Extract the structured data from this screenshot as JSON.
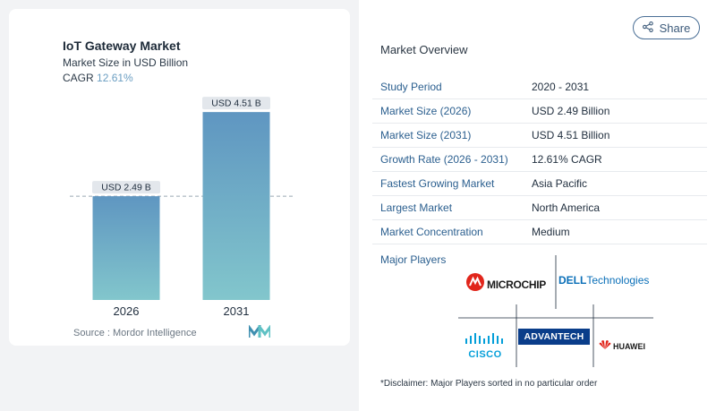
{
  "chart": {
    "title": "IoT Gateway Market",
    "subtitle": "Market Size in USD Billion",
    "cagr_label": "CAGR",
    "cagr_value": "12.61%",
    "source": "Source :  Mordor Intelligence"
  },
  "chart_data": {
    "type": "bar",
    "categories": [
      "2026",
      "2031"
    ],
    "values": [
      2.49,
      4.51
    ],
    "data_labels": [
      "USD 2.49 B",
      "USD 4.51 B"
    ],
    "title": "IoT Gateway Market",
    "xlabel": "",
    "ylabel": "",
    "ylim": [
      0,
      4.9
    ],
    "grid": false,
    "reference_line": 2.49
  },
  "share_label": "Share",
  "overview": {
    "title": "Market Overview",
    "rows": [
      {
        "key": "Study Period",
        "value": "2020 - 2031"
      },
      {
        "key": "Market Size (2026)",
        "value": "USD 2.49 Billion"
      },
      {
        "key": "Market Size (2031)",
        "value": "USD 4.51 Billion"
      },
      {
        "key": "Growth Rate (2026 - 2031)",
        "value": "12.61% CAGR"
      },
      {
        "key": "Fastest Growing Market",
        "value": "Asia Pacific"
      },
      {
        "key": "Largest Market",
        "value": "North America"
      },
      {
        "key": "Market Concentration",
        "value": "Medium"
      }
    ]
  },
  "players": {
    "title": "Major Players",
    "names": [
      "MICROCHIP",
      "DELL",
      "Technologies",
      "CISCO",
      "ADVANTECH",
      "HUAWEI"
    ]
  },
  "disclaimer": "*Disclaimer: Major Players sorted in no particular order",
  "colors": {
    "bar_top": "#5f96c1",
    "bar_bottom": "#82c6cc",
    "accent": "#2b5f8f"
  }
}
